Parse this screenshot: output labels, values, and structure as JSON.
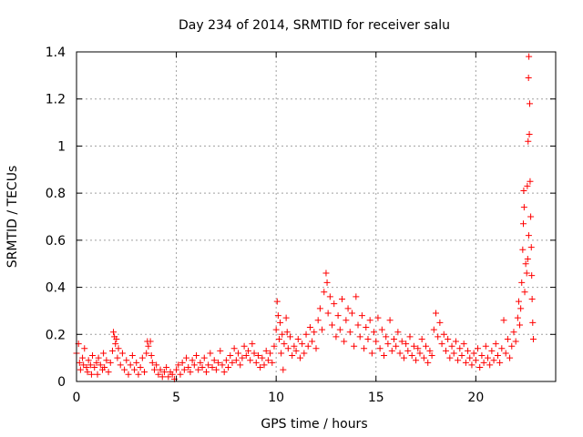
{
  "chart_data": {
    "type": "scatter",
    "title": "Day 234 of 2014, SRMTID for receiver salu",
    "xlabel": "GPS time / hours",
    "ylabel": "SRMTID / TECUs",
    "xlim": [
      0,
      24
    ],
    "ylim": [
      0,
      1.4
    ],
    "xticks": [
      0,
      5,
      10,
      15,
      20
    ],
    "xtick_labels": [
      "0",
      "5",
      "10",
      "15",
      "20"
    ],
    "yticks": [
      0,
      0.2,
      0.4,
      0.6,
      0.8,
      1.0,
      1.2,
      1.4
    ],
    "ytick_labels": [
      "0",
      "0.2",
      "0.4",
      "0.6",
      "0.8",
      "1",
      "1.2",
      "1.4"
    ],
    "grid": true,
    "marker": "+",
    "color": "#ff0000",
    "series": [
      {
        "name": "SRMTID",
        "points": [
          [
            0.0,
            0.12
          ],
          [
            0.1,
            0.16
          ],
          [
            0.15,
            0.08
          ],
          [
            0.2,
            0.05
          ],
          [
            0.3,
            0.1
          ],
          [
            0.35,
            0.07
          ],
          [
            0.4,
            0.14
          ],
          [
            0.5,
            0.06
          ],
          [
            0.55,
            0.04
          ],
          [
            0.6,
            0.09
          ],
          [
            0.7,
            0.07
          ],
          [
            0.75,
            0.03
          ],
          [
            0.8,
            0.11
          ],
          [
            0.9,
            0.06
          ],
          [
            1.0,
            0.08
          ],
          [
            1.05,
            0.03
          ],
          [
            1.1,
            0.1
          ],
          [
            1.2,
            0.07
          ],
          [
            1.3,
            0.05
          ],
          [
            1.35,
            0.12
          ],
          [
            1.4,
            0.06
          ],
          [
            1.5,
            0.09
          ],
          [
            1.6,
            0.04
          ],
          [
            1.7,
            0.08
          ],
          [
            1.8,
            0.13
          ],
          [
            1.85,
            0.21
          ],
          [
            1.9,
            0.19
          ],
          [
            1.95,
            0.16
          ],
          [
            2.0,
            0.18
          ],
          [
            2.05,
            0.1
          ],
          [
            2.1,
            0.14
          ],
          [
            2.2,
            0.07
          ],
          [
            2.3,
            0.12
          ],
          [
            2.4,
            0.05
          ],
          [
            2.5,
            0.09
          ],
          [
            2.6,
            0.03
          ],
          [
            2.7,
            0.07
          ],
          [
            2.8,
            0.11
          ],
          [
            2.9,
            0.05
          ],
          [
            3.0,
            0.08
          ],
          [
            3.1,
            0.03
          ],
          [
            3.2,
            0.06
          ],
          [
            3.3,
            0.1
          ],
          [
            3.4,
            0.04
          ],
          [
            3.5,
            0.12
          ],
          [
            3.55,
            0.17
          ],
          [
            3.6,
            0.15
          ],
          [
            3.7,
            0.17
          ],
          [
            3.75,
            0.11
          ],
          [
            3.8,
            0.08
          ],
          [
            3.9,
            0.05
          ],
          [
            4.0,
            0.07
          ],
          [
            4.1,
            0.03
          ],
          [
            4.2,
            0.05
          ],
          [
            4.3,
            0.02
          ],
          [
            4.4,
            0.04
          ],
          [
            4.5,
            0.06
          ],
          [
            4.6,
            0.02
          ],
          [
            4.7,
            0.04
          ],
          [
            4.8,
            0.03
          ],
          [
            4.9,
            0.01
          ],
          [
            5.0,
            0.05
          ],
          [
            5.1,
            0.07
          ],
          [
            5.2,
            0.03
          ],
          [
            5.3,
            0.08
          ],
          [
            5.4,
            0.05
          ],
          [
            5.5,
            0.1
          ],
          [
            5.6,
            0.06
          ],
          [
            5.7,
            0.04
          ],
          [
            5.8,
            0.09
          ],
          [
            5.9,
            0.07
          ],
          [
            6.0,
            0.11
          ],
          [
            6.1,
            0.05
          ],
          [
            6.2,
            0.08
          ],
          [
            6.3,
            0.06
          ],
          [
            6.4,
            0.1
          ],
          [
            6.5,
            0.04
          ],
          [
            6.6,
            0.07
          ],
          [
            6.7,
            0.12
          ],
          [
            6.8,
            0.06
          ],
          [
            6.9,
            0.09
          ],
          [
            7.0,
            0.05
          ],
          [
            7.1,
            0.08
          ],
          [
            7.2,
            0.13
          ],
          [
            7.3,
            0.07
          ],
          [
            7.4,
            0.04
          ],
          [
            7.5,
            0.09
          ],
          [
            7.6,
            0.06
          ],
          [
            7.7,
            0.11
          ],
          [
            7.8,
            0.08
          ],
          [
            7.9,
            0.14
          ],
          [
            8.0,
            0.09
          ],
          [
            8.1,
            0.12
          ],
          [
            8.2,
            0.07
          ],
          [
            8.3,
            0.1
          ],
          [
            8.4,
            0.15
          ],
          [
            8.5,
            0.11
          ],
          [
            8.6,
            0.13
          ],
          [
            8.7,
            0.09
          ],
          [
            8.8,
            0.16
          ],
          [
            8.9,
            0.12
          ],
          [
            9.0,
            0.08
          ],
          [
            9.1,
            0.11
          ],
          [
            9.2,
            0.06
          ],
          [
            9.3,
            0.1
          ],
          [
            9.4,
            0.07
          ],
          [
            9.5,
            0.13
          ],
          [
            9.6,
            0.09
          ],
          [
            9.7,
            0.12
          ],
          [
            9.8,
            0.08
          ],
          [
            9.9,
            0.15
          ],
          [
            10.0,
            0.22
          ],
          [
            10.05,
            0.34
          ],
          [
            10.1,
            0.28
          ],
          [
            10.15,
            0.18
          ],
          [
            10.2,
            0.25
          ],
          [
            10.25,
            0.12
          ],
          [
            10.3,
            0.2
          ],
          [
            10.35,
            0.05
          ],
          [
            10.4,
            0.16
          ],
          [
            10.5,
            0.27
          ],
          [
            10.55,
            0.21
          ],
          [
            10.6,
            0.14
          ],
          [
            10.7,
            0.19
          ],
          [
            10.8,
            0.11
          ],
          [
            10.9,
            0.15
          ],
          [
            11.0,
            0.13
          ],
          [
            11.1,
            0.18
          ],
          [
            11.2,
            0.1
          ],
          [
            11.3,
            0.16
          ],
          [
            11.4,
            0.12
          ],
          [
            11.5,
            0.2
          ],
          [
            11.6,
            0.15
          ],
          [
            11.7,
            0.23
          ],
          [
            11.8,
            0.17
          ],
          [
            11.9,
            0.21
          ],
          [
            12.0,
            0.14
          ],
          [
            12.1,
            0.26
          ],
          [
            12.2,
            0.31
          ],
          [
            12.3,
            0.22
          ],
          [
            12.4,
            0.38
          ],
          [
            12.5,
            0.46
          ],
          [
            12.55,
            0.42
          ],
          [
            12.6,
            0.29
          ],
          [
            12.7,
            0.36
          ],
          [
            12.8,
            0.24
          ],
          [
            12.9,
            0.33
          ],
          [
            13.0,
            0.19
          ],
          [
            13.1,
            0.28
          ],
          [
            13.2,
            0.22
          ],
          [
            13.3,
            0.35
          ],
          [
            13.4,
            0.17
          ],
          [
            13.5,
            0.26
          ],
          [
            13.6,
            0.31
          ],
          [
            13.7,
            0.21
          ],
          [
            13.8,
            0.29
          ],
          [
            13.9,
            0.15
          ],
          [
            14.0,
            0.36
          ],
          [
            14.1,
            0.24
          ],
          [
            14.2,
            0.19
          ],
          [
            14.3,
            0.28
          ],
          [
            14.4,
            0.14
          ],
          [
            14.5,
            0.23
          ],
          [
            14.6,
            0.18
          ],
          [
            14.7,
            0.26
          ],
          [
            14.8,
            0.12
          ],
          [
            14.9,
            0.21
          ],
          [
            15.0,
            0.17
          ],
          [
            15.1,
            0.27
          ],
          [
            15.2,
            0.14
          ],
          [
            15.3,
            0.22
          ],
          [
            15.4,
            0.11
          ],
          [
            15.5,
            0.19
          ],
          [
            15.6,
            0.16
          ],
          [
            15.7,
            0.26
          ],
          [
            15.8,
            0.13
          ],
          [
            15.9,
            0.18
          ],
          [
            16.0,
            0.15
          ],
          [
            16.1,
            0.21
          ],
          [
            16.2,
            0.12
          ],
          [
            16.3,
            0.17
          ],
          [
            16.4,
            0.1
          ],
          [
            16.5,
            0.16
          ],
          [
            16.6,
            0.13
          ],
          [
            16.7,
            0.19
          ],
          [
            16.8,
            0.11
          ],
          [
            16.9,
            0.15
          ],
          [
            17.0,
            0.09
          ],
          [
            17.1,
            0.14
          ],
          [
            17.2,
            0.12
          ],
          [
            17.3,
            0.18
          ],
          [
            17.4,
            0.1
          ],
          [
            17.5,
            0.15
          ],
          [
            17.6,
            0.08
          ],
          [
            17.7,
            0.13
          ],
          [
            17.8,
            0.11
          ],
          [
            17.9,
            0.22
          ],
          [
            18.0,
            0.29
          ],
          [
            18.1,
            0.19
          ],
          [
            18.2,
            0.25
          ],
          [
            18.3,
            0.16
          ],
          [
            18.4,
            0.2
          ],
          [
            18.5,
            0.13
          ],
          [
            18.6,
            0.18
          ],
          [
            18.7,
            0.1
          ],
          [
            18.8,
            0.15
          ],
          [
            18.9,
            0.12
          ],
          [
            19.0,
            0.17
          ],
          [
            19.1,
            0.09
          ],
          [
            19.2,
            0.14
          ],
          [
            19.3,
            0.11
          ],
          [
            19.4,
            0.16
          ],
          [
            19.5,
            0.08
          ],
          [
            19.6,
            0.13
          ],
          [
            19.7,
            0.1
          ],
          [
            19.8,
            0.07
          ],
          [
            19.9,
            0.12
          ],
          [
            20.0,
            0.09
          ],
          [
            20.1,
            0.14
          ],
          [
            20.2,
            0.06
          ],
          [
            20.3,
            0.11
          ],
          [
            20.4,
            0.08
          ],
          [
            20.5,
            0.15
          ],
          [
            20.6,
            0.1
          ],
          [
            20.7,
            0.07
          ],
          [
            20.8,
            0.13
          ],
          [
            20.9,
            0.09
          ],
          [
            21.0,
            0.16
          ],
          [
            21.1,
            0.11
          ],
          [
            21.2,
            0.08
          ],
          [
            21.3,
            0.14
          ],
          [
            21.4,
            0.26
          ],
          [
            21.5,
            0.12
          ],
          [
            21.6,
            0.18
          ],
          [
            21.7,
            0.1
          ],
          [
            21.8,
            0.15
          ],
          [
            21.9,
            0.21
          ],
          [
            22.0,
            0.17
          ],
          [
            22.1,
            0.27
          ],
          [
            22.15,
            0.34
          ],
          [
            22.2,
            0.24
          ],
          [
            22.25,
            0.31
          ],
          [
            22.3,
            0.42
          ],
          [
            22.35,
            0.56
          ],
          [
            22.38,
            0.67
          ],
          [
            22.4,
            0.81
          ],
          [
            22.42,
            0.74
          ],
          [
            22.45,
            0.38
          ],
          [
            22.5,
            0.5
          ],
          [
            22.55,
            0.46
          ],
          [
            22.58,
            0.83
          ],
          [
            22.6,
            0.52
          ],
          [
            22.62,
            1.02
          ],
          [
            22.64,
            1.29
          ],
          [
            22.65,
            0.62
          ],
          [
            22.66,
            1.38
          ],
          [
            22.68,
            1.05
          ],
          [
            22.7,
            1.18
          ],
          [
            22.72,
            0.85
          ],
          [
            22.75,
            0.7
          ],
          [
            22.78,
            0.57
          ],
          [
            22.8,
            0.45
          ],
          [
            22.82,
            0.35
          ],
          [
            22.85,
            0.25
          ],
          [
            22.88,
            0.18
          ]
        ]
      }
    ]
  }
}
